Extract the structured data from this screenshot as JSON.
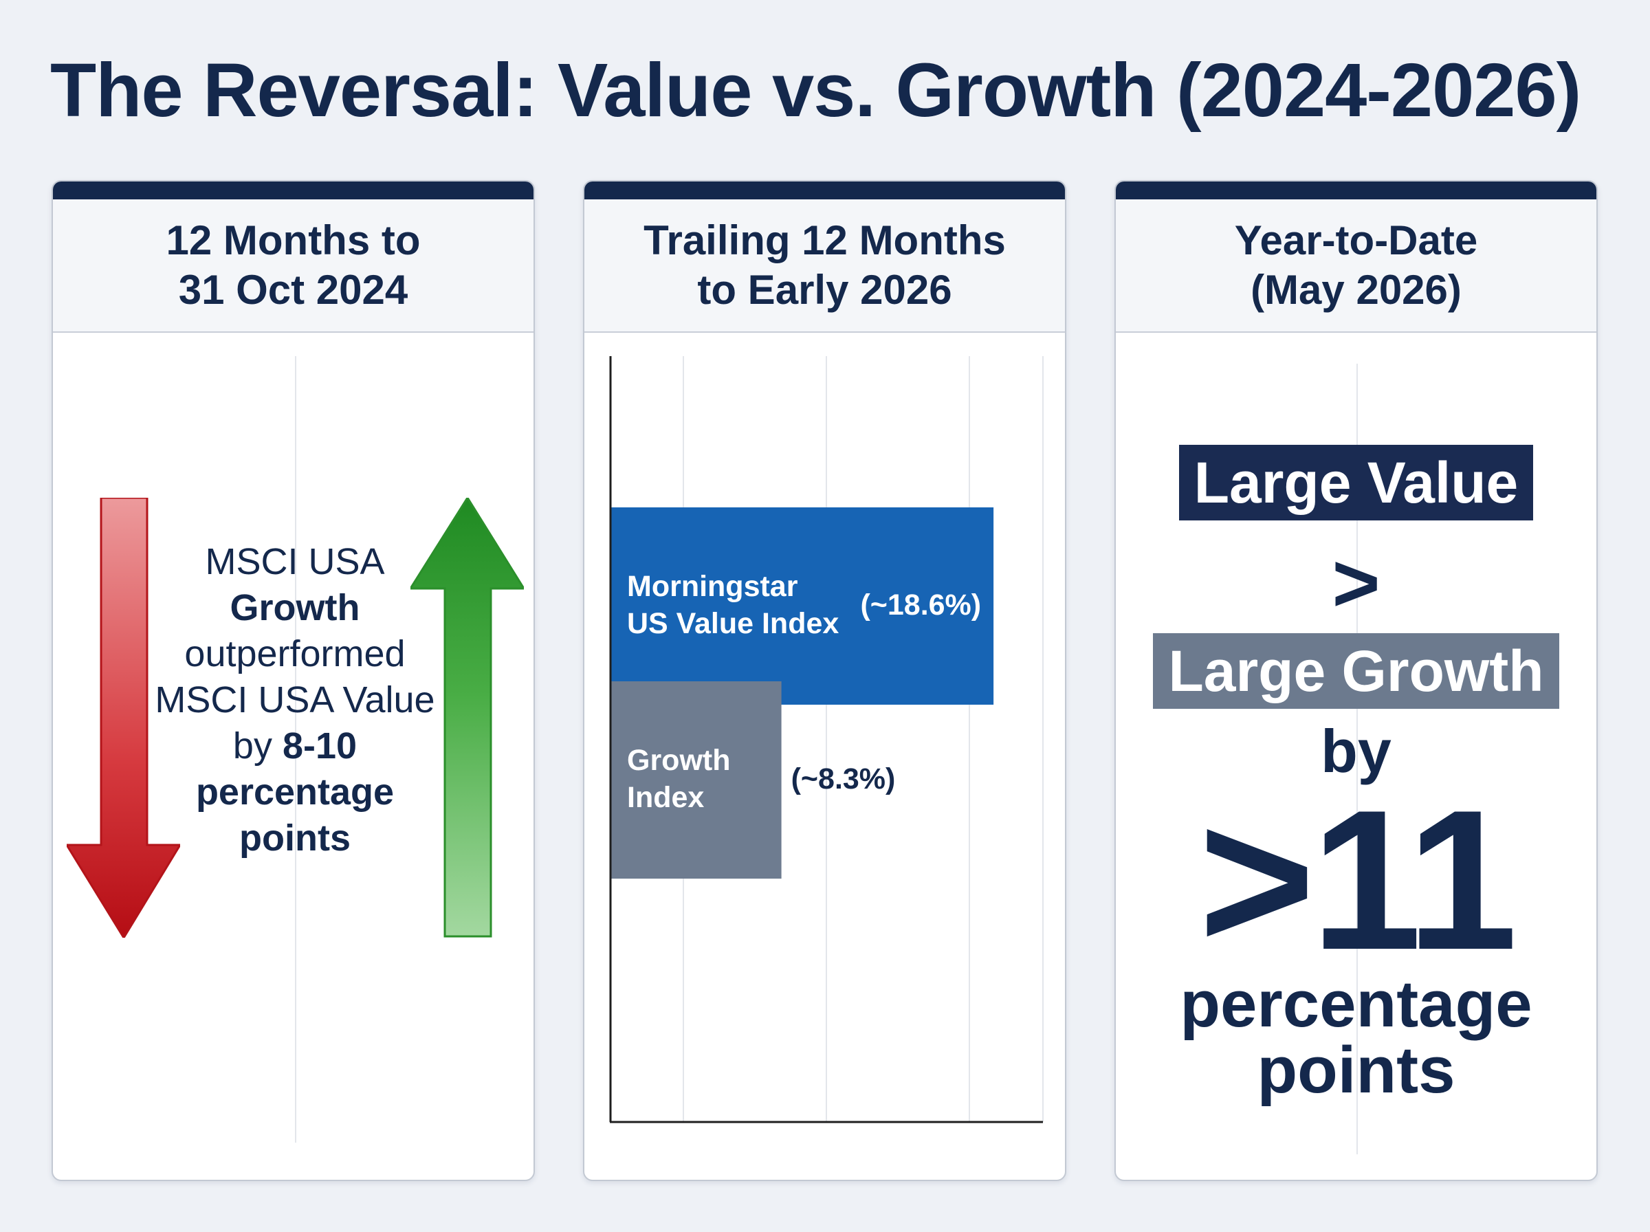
{
  "title": "The Reversal: Value vs. Growth (2024-2026)",
  "panels": [
    {
      "header_lines": [
        "12 Months to",
        "31 Oct 2024"
      ],
      "text_segments": [
        {
          "t": "MSCI USA ",
          "b": false
        },
        {
          "t": "Growth",
          "b": true
        },
        {
          "t": " outperformed MSCI USA Value by ",
          "b": false
        },
        {
          "t": "8-10 percentage points",
          "b": true
        }
      ],
      "arrows": {
        "down_color": "#c8102e",
        "up_color": "#2e9a2e"
      }
    },
    {
      "header_lines": [
        "Trailing 12 Months",
        "to Early 2026"
      ]
    },
    {
      "header_lines": [
        "Year-to-Date",
        "(May 2026)"
      ],
      "value_label": "Large Value",
      "gt_symbol": ">",
      "growth_label": "Large Growth",
      "by_text": "by",
      "big_number": ">11",
      "unit_lines": [
        "percentage",
        "points"
      ]
    }
  ],
  "chart_data": {
    "type": "bar",
    "orientation": "horizontal",
    "categories": [
      "Morningstar US Value Index",
      "Growth Index"
    ],
    "category_lines": [
      [
        "Morningstar",
        "US Value Index"
      ],
      [
        "Growth",
        "Index"
      ]
    ],
    "values": [
      18.6,
      8.3
    ],
    "value_labels": [
      "(~18.6%)",
      "(~8.3%)"
    ],
    "colors": [
      "#1764b4",
      "#6e7c90"
    ],
    "xlim": [
      0,
      21
    ],
    "title": "",
    "xlabel": "",
    "ylabel": "",
    "grid": true,
    "legend": "none"
  }
}
